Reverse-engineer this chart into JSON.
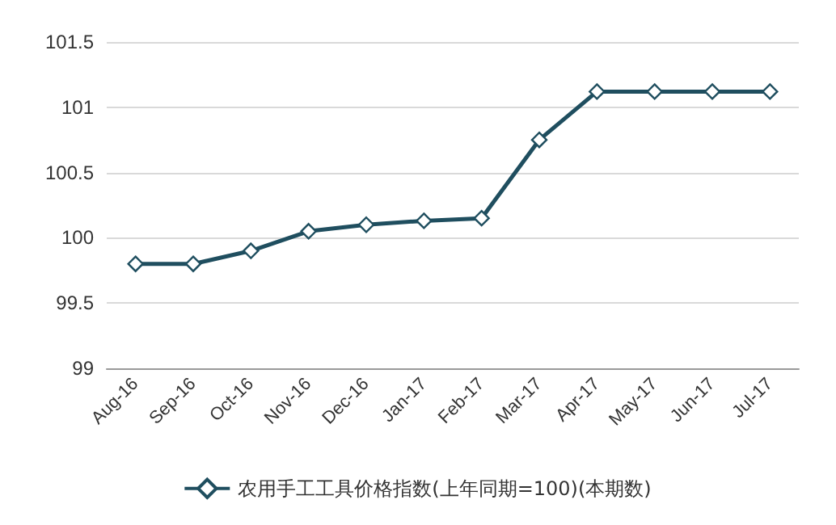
{
  "chart_data": {
    "type": "line",
    "categories": [
      "Aug-16",
      "Sep-16",
      "Oct-16",
      "Nov-16",
      "Dec-16",
      "Jan-17",
      "Feb-17",
      "Mar-17",
      "Apr-17",
      "May-17",
      "Jun-17",
      "Jul-17"
    ],
    "series": [
      {
        "name": "农用手工工具价格指数(上年同期=100)(本期数)",
        "color": "#1f4e5f",
        "values": [
          99.8,
          99.8,
          99.9,
          100.05,
          100.1,
          100.13,
          100.15,
          100.75,
          101.12,
          101.12,
          101.12,
          101.12
        ]
      }
    ],
    "ylim": [
      99,
      101.5
    ],
    "yticks": [
      99,
      99.5,
      100,
      100.5,
      101,
      101.5
    ],
    "grid": "y",
    "legend": "bottom",
    "marker": "diamond",
    "line_style": "solid"
  }
}
